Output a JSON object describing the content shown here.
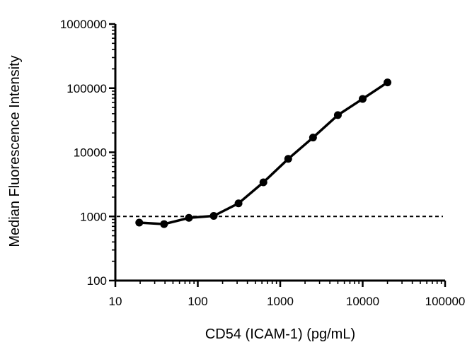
{
  "chart_data": {
    "type": "line",
    "title": "",
    "xlabel": "CD54 (ICAM-1) (pg/mL)",
    "ylabel": "Median Fluorescence Intensity",
    "x_scale": "log",
    "y_scale": "log",
    "xlim": [
      10,
      100000
    ],
    "ylim": [
      100,
      1000000
    ],
    "x_ticks": [
      10,
      100,
      1000,
      10000,
      100000
    ],
    "x_tick_labels": [
      "10",
      "100",
      "1000",
      "10000",
      "100000"
    ],
    "y_ticks": [
      100,
      1000,
      10000,
      100000,
      1000000
    ],
    "y_tick_labels": [
      "100",
      "1000",
      "10000",
      "100000",
      "1000000"
    ],
    "grid": false,
    "legend": "none",
    "series": [
      {
        "x": [
          19.5,
          39,
          78,
          156,
          312,
          625,
          1250,
          2500,
          5000,
          10000,
          20000
        ],
        "y": [
          800,
          760,
          950,
          1020,
          1600,
          3400,
          7900,
          17000,
          38000,
          68000,
          123000
        ],
        "color": "#000000",
        "marker": "circle"
      }
    ],
    "reference_line": {
      "y": 1000,
      "style": "dashed",
      "color": "#000000"
    }
  }
}
